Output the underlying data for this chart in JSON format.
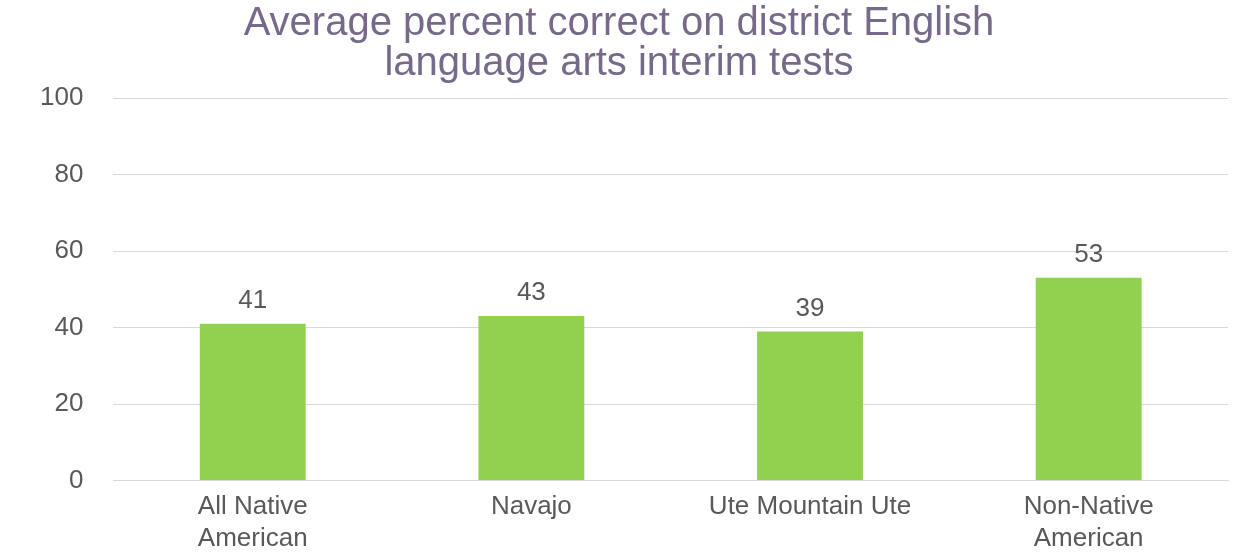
{
  "chart_data": {
    "type": "bar",
    "title": "Average percent correct on district English language arts interim tests",
    "categories": [
      "All Native American",
      "Navajo",
      "Ute Mountain Ute",
      "Non-Native American"
    ],
    "values": [
      41,
      43,
      39,
      53
    ],
    "color": "#92d050",
    "ylim": [
      0,
      100
    ],
    "yticks": [
      0,
      20,
      40,
      60,
      80,
      100
    ],
    "grid": "y",
    "data_labels": true
  }
}
